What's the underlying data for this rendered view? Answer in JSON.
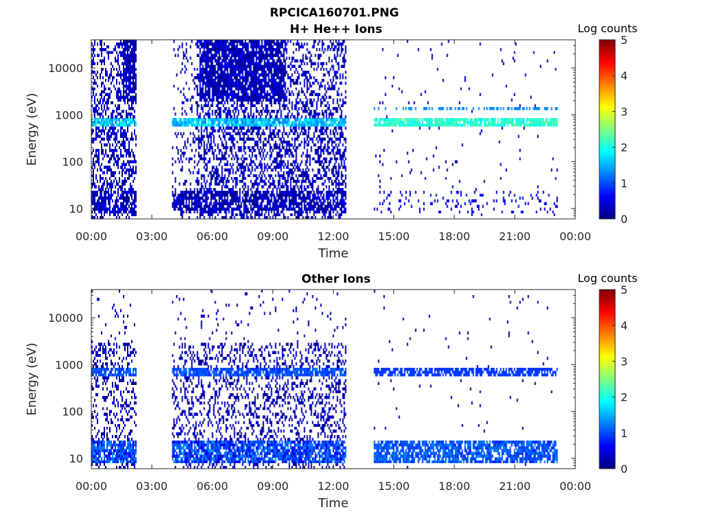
{
  "figure": {
    "main_title": "RPCICA160701.PNG"
  },
  "colormap": [
    "#00007f",
    "#0000ff",
    "#007fff",
    "#00ffff",
    "#7fff7f",
    "#ffff00",
    "#ff7f00",
    "#ff0000",
    "#7f0000"
  ],
  "chart_data": [
    {
      "type": "heatmap",
      "title": "H+ He++ Ions",
      "xlabel": "Time",
      "ylabel": "Energy (eV)",
      "xlim": [
        "00:00",
        "24:00"
      ],
      "ylim": [
        6,
        40000
      ],
      "yscale": "log",
      "x_tick_labels": [
        "00:00",
        "03:00",
        "06:00",
        "09:00",
        "12:00",
        "15:00",
        "18:00",
        "21:00",
        "00:00"
      ],
      "y_tick_labels": [
        "10",
        "100",
        "1000",
        "10000"
      ],
      "colorbar": {
        "label": "Log counts",
        "range": [
          0,
          5
        ],
        "tick_labels": [
          "0",
          "1",
          "2",
          "3",
          "4",
          "5"
        ]
      },
      "data_intervals_hours": [
        [
          0.0,
          2.2
        ],
        [
          4.0,
          12.6
        ],
        [
          14.0,
          23.1
        ]
      ],
      "features": {
        "main_band_energy_eV": 700,
        "secondary_band_energy_eV": 1400,
        "low_energy_band_eV": [
          8,
          25
        ],
        "main_band_log_counts": 2.0,
        "background_log_counts": 0.3,
        "high_energy_bursts_hours": [
          [
            1.55,
            2.2
          ],
          [
            5.3,
            9.6
          ]
        ]
      }
    },
    {
      "type": "heatmap",
      "title": "Other Ions",
      "xlabel": "Time",
      "ylabel": "Energy (eV)",
      "xlim": [
        "00:00",
        "24:00"
      ],
      "ylim": [
        6,
        40000
      ],
      "yscale": "log",
      "x_tick_labels": [
        "00:00",
        "03:00",
        "06:00",
        "09:00",
        "12:00",
        "15:00",
        "18:00",
        "21:00",
        "00:00"
      ],
      "y_tick_labels": [
        "10",
        "100",
        "1000",
        "10000"
      ],
      "colorbar": {
        "label": "Log counts",
        "range": [
          0,
          5
        ],
        "tick_labels": [
          "0",
          "1",
          "2",
          "3",
          "4",
          "5"
        ]
      },
      "data_intervals_hours": [
        [
          0.0,
          2.2
        ],
        [
          4.0,
          12.6
        ],
        [
          14.0,
          23.1
        ]
      ],
      "features": {
        "main_band_energy_eV": 700,
        "low_energy_band_eV": [
          8,
          25
        ],
        "main_band_log_counts": 1.0,
        "low_band_log_counts": 1.0,
        "background_log_counts": 0.2
      }
    }
  ]
}
